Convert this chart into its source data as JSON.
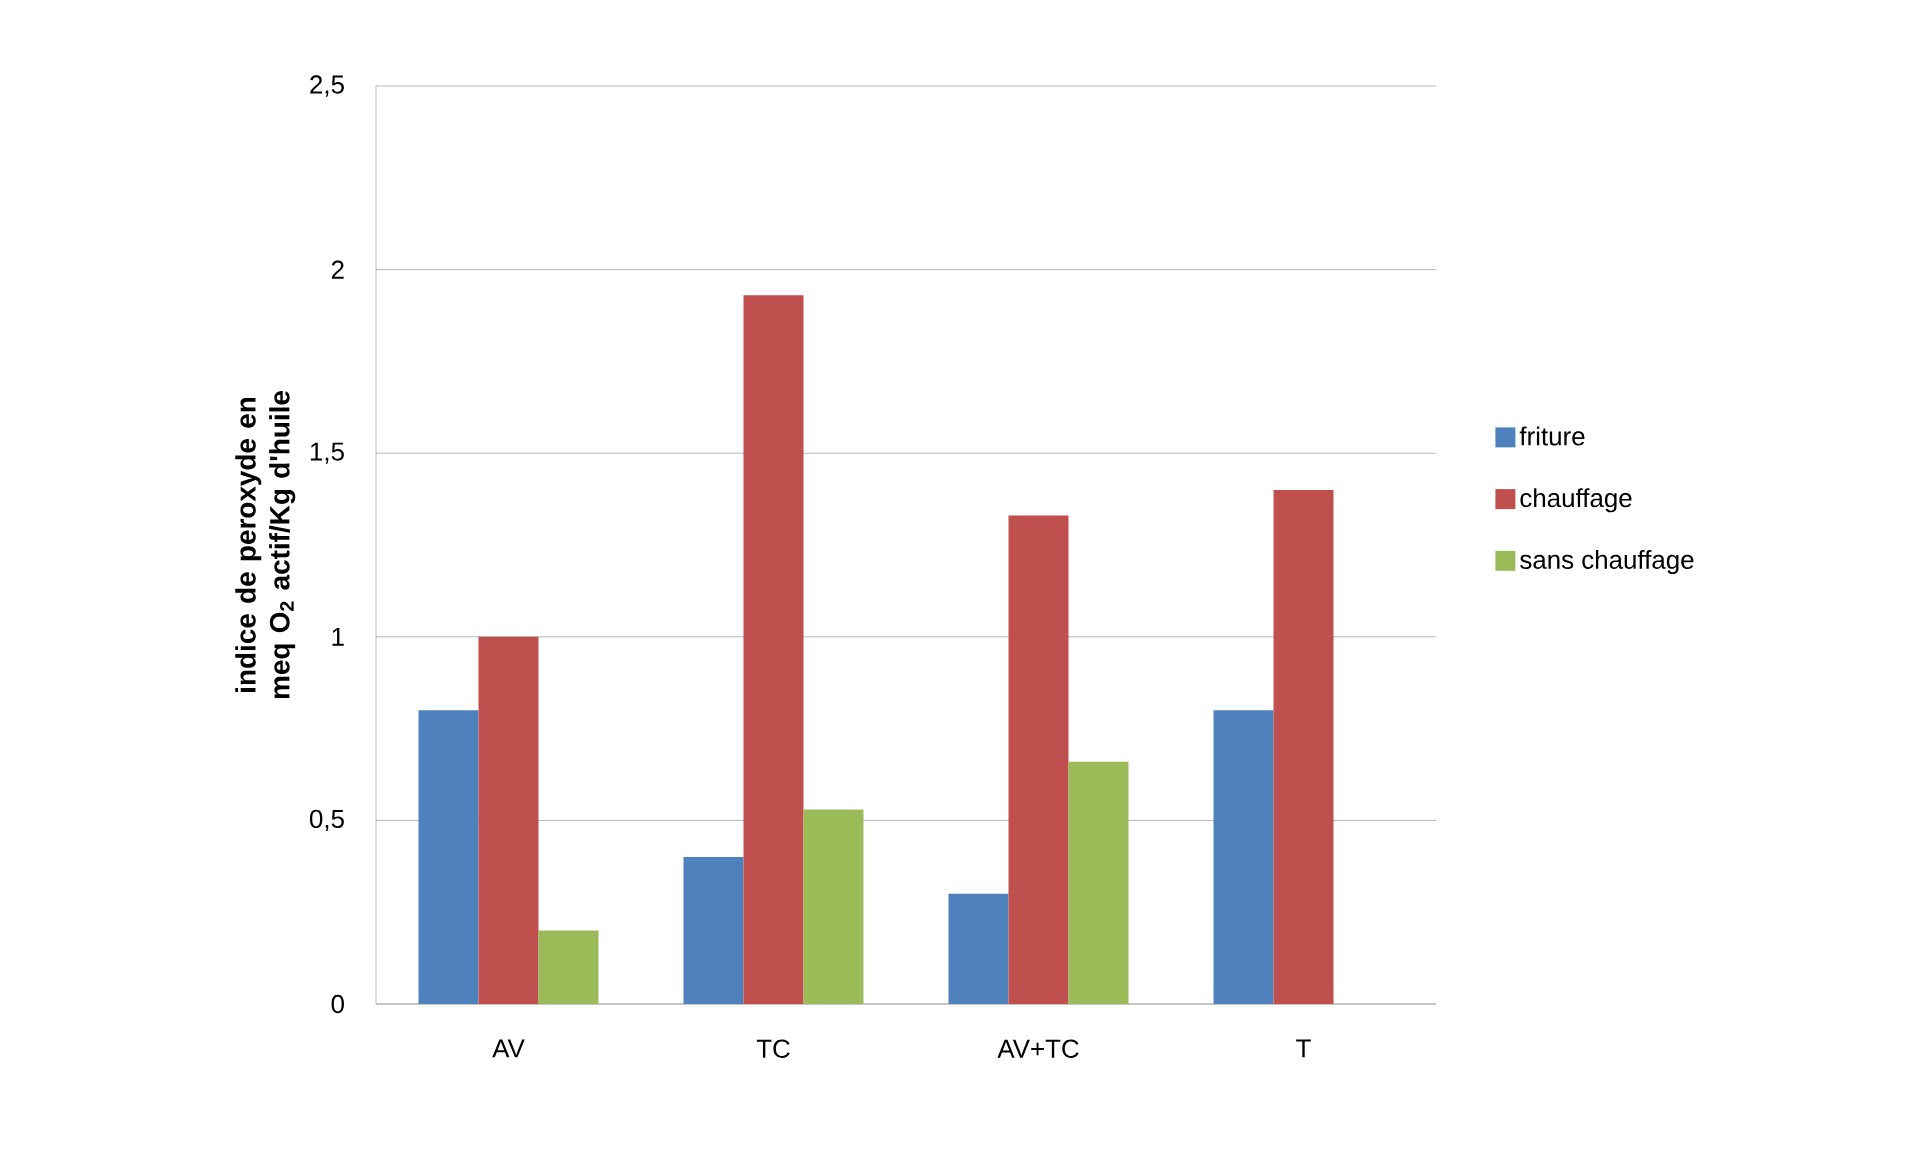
{
  "chart_data": {
    "type": "bar",
    "ylabel": "indice de peroxyde en meq O$_{2}$ actif/Kg d'huile",
    "categories": [
      "AV",
      "TC",
      "AV+TC",
      "T"
    ],
    "series": [
      {
        "name": "friture",
        "color": "#4f81bd",
        "values": [
          0.8,
          0.4,
          0.3,
          0.8
        ]
      },
      {
        "name": "chauffage",
        "color": "#c0504d",
        "values": [
          1.0,
          1.93,
          1.33,
          1.4
        ]
      },
      {
        "name": "sans chauffage",
        "color": "#9bbb59",
        "values": [
          0.2,
          0.53,
          0.66,
          null
        ]
      }
    ],
    "ylim": [
      0,
      2.5
    ],
    "yticks": [
      0,
      {
        "value": 0.5,
        "label": "0,5"
      },
      1,
      {
        "value": 1.5,
        "label": "1,5"
      },
      2,
      {
        "value": 2.5,
        "label": "2,5"
      }
    ],
    "grid": "y",
    "legend": "right"
  }
}
